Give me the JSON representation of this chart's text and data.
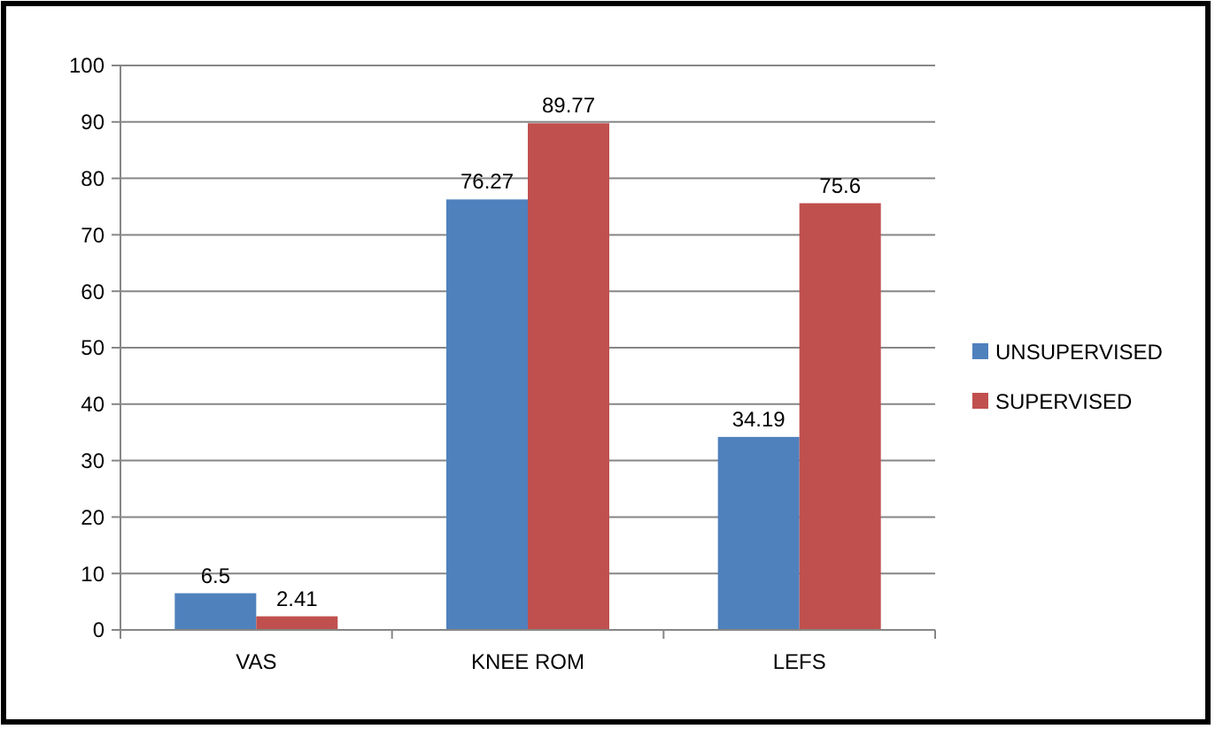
{
  "chart_data": {
    "type": "bar",
    "categories": [
      "VAS",
      "KNEE ROM",
      "LEFS"
    ],
    "series": [
      {
        "name": "UNSUPERVISED",
        "color": "#4f81bd",
        "values": [
          6.5,
          76.27,
          34.19
        ]
      },
      {
        "name": "SUPERVISED",
        "color": "#c0504d",
        "values": [
          2.41,
          89.77,
          75.6
        ]
      }
    ],
    "ylim": [
      0,
      100
    ],
    "yticks": [
      0,
      10,
      20,
      30,
      40,
      50,
      60,
      70,
      80,
      90,
      100
    ],
    "grid": "y",
    "legend": "right",
    "data_labels": true
  }
}
